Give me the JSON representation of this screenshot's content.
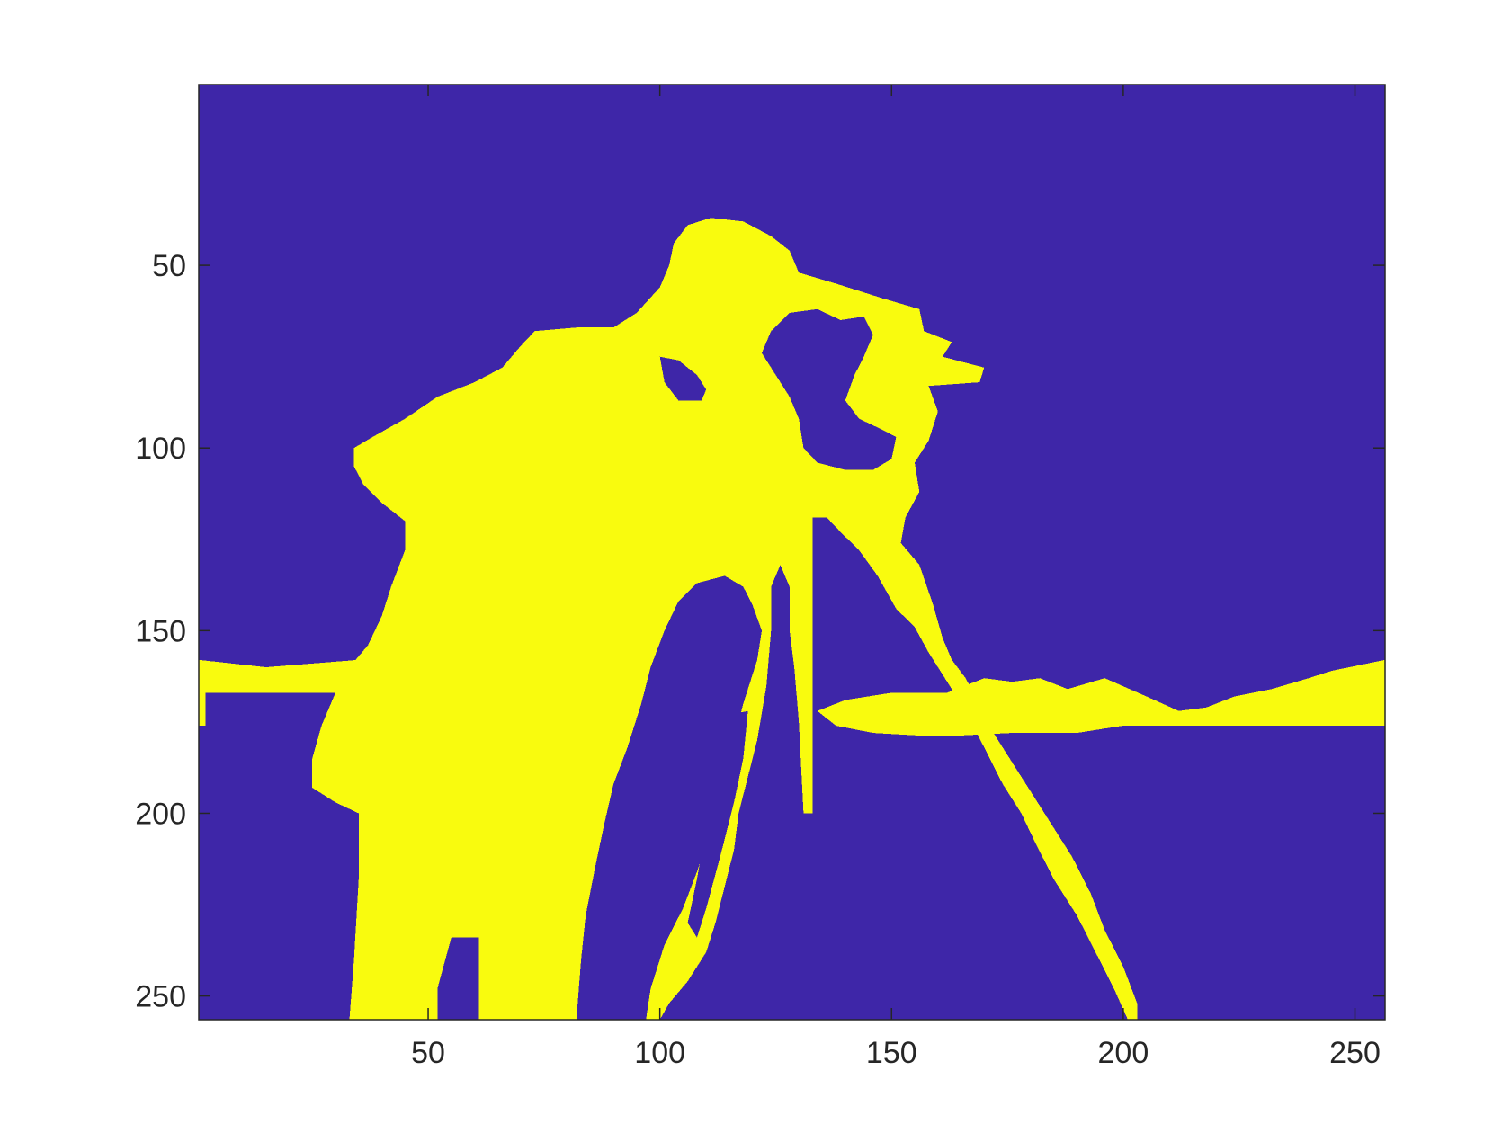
{
  "chart_data": {
    "type": "heatmap",
    "title": "",
    "xlabel": "",
    "ylabel": "",
    "x_range": [
      0.5,
      256.5
    ],
    "y_range": [
      0.5,
      256.5
    ],
    "y_direction": "reversed",
    "x_ticks": [
      50,
      100,
      150,
      200,
      250
    ],
    "y_ticks": [
      50,
      100,
      150,
      200,
      250
    ],
    "x_tick_labels": [
      "50",
      "100",
      "150",
      "200",
      "250"
    ],
    "y_tick_labels": [
      "50",
      "100",
      "150",
      "200",
      "250"
    ],
    "grid": false,
    "value_levels": [
      0,
      1
    ],
    "colors": {
      "0": "#3e26a8",
      "1": "#f9fb0e"
    },
    "regions_value_1": [
      {
        "name": "person",
        "outline": [
          [
            111,
            37
          ],
          [
            118,
            38
          ],
          [
            124,
            42
          ],
          [
            128,
            46
          ],
          [
            130,
            52
          ],
          [
            138,
            55
          ],
          [
            148,
            59
          ],
          [
            156,
            62
          ],
          [
            157,
            68
          ],
          [
            163,
            71
          ],
          [
            161,
            75
          ],
          [
            170,
            78
          ],
          [
            169,
            82
          ],
          [
            158,
            83
          ],
          [
            160,
            90
          ],
          [
            158,
            98
          ],
          [
            155,
            104
          ],
          [
            156,
            112
          ],
          [
            153,
            119
          ],
          [
            152,
            126
          ],
          [
            156,
            132
          ],
          [
            159,
            143
          ],
          [
            161,
            152
          ],
          [
            163,
            158
          ],
          [
            166,
            163
          ],
          [
            168,
            168
          ],
          [
            172,
            178
          ],
          [
            176,
            186
          ],
          [
            181,
            196
          ],
          [
            185,
            204
          ],
          [
            189,
            212
          ],
          [
            193,
            222
          ],
          [
            196,
            232
          ],
          [
            200,
            242
          ],
          [
            203,
            252
          ],
          [
            203,
            256.5
          ],
          [
            201,
            256.5
          ],
          [
            198,
            248
          ],
          [
            194,
            238
          ],
          [
            190,
            228
          ],
          [
            185,
            218
          ],
          [
            181,
            208
          ],
          [
            178,
            200
          ],
          [
            174,
            192
          ],
          [
            170,
            182
          ],
          [
            166,
            172
          ],
          [
            162,
            164
          ],
          [
            158,
            156
          ],
          [
            155,
            149
          ],
          [
            151,
            144
          ],
          [
            147,
            135
          ],
          [
            143,
            128
          ],
          [
            139,
            123
          ],
          [
            136,
            119
          ],
          [
            133,
            119
          ],
          [
            133,
            140
          ],
          [
            133,
            200
          ],
          [
            131,
            200
          ],
          [
            130,
            175
          ],
          [
            129,
            160
          ],
          [
            128,
            150
          ],
          [
            128,
            138
          ],
          [
            126,
            132
          ],
          [
            124,
            138
          ],
          [
            124,
            150
          ],
          [
            123,
            165
          ],
          [
            121,
            180
          ],
          [
            119,
            190
          ],
          [
            117,
            200
          ],
          [
            116,
            210
          ],
          [
            114,
            220
          ],
          [
            112,
            230
          ],
          [
            110,
            238
          ],
          [
            106,
            246
          ],
          [
            102,
            252
          ],
          [
            100,
            256.5
          ],
          [
            97,
            256.5
          ],
          [
            98,
            248
          ],
          [
            101,
            236
          ],
          [
            105,
            226
          ],
          [
            108,
            216
          ],
          [
            111,
            205
          ],
          [
            113,
            192
          ],
          [
            116,
            180
          ],
          [
            118,
            170
          ],
          [
            121,
            158
          ],
          [
            122,
            150
          ],
          [
            120,
            143
          ],
          [
            118,
            138
          ],
          [
            114,
            135
          ],
          [
            108,
            137
          ],
          [
            104,
            142
          ],
          [
            101,
            150
          ],
          [
            98,
            160
          ],
          [
            96,
            170
          ],
          [
            93,
            182
          ],
          [
            90,
            192
          ],
          [
            88,
            203
          ],
          [
            86,
            215
          ],
          [
            84,
            228
          ],
          [
            83,
            240
          ],
          [
            82,
            256.5
          ],
          [
            61,
            256.5
          ],
          [
            61,
            234
          ],
          [
            55,
            234
          ],
          [
            52,
            248
          ],
          [
            52,
            256.5
          ],
          [
            33,
            256.5
          ],
          [
            34,
            240
          ],
          [
            35,
            218
          ],
          [
            35,
            200
          ],
          [
            30,
            197
          ],
          [
            25,
            193
          ],
          [
            25,
            185
          ],
          [
            27,
            176
          ],
          [
            30,
            167
          ],
          [
            33,
            160
          ],
          [
            37,
            154
          ],
          [
            40,
            146
          ],
          [
            42,
            138
          ],
          [
            45,
            128
          ],
          [
            45,
            120
          ],
          [
            40,
            115
          ],
          [
            36,
            110
          ],
          [
            34,
            105
          ],
          [
            34,
            100
          ],
          [
            38,
            97
          ],
          [
            45,
            92
          ],
          [
            52,
            86
          ],
          [
            60,
            82
          ],
          [
            66,
            78
          ],
          [
            70,
            72
          ],
          [
            73,
            68
          ],
          [
            82,
            67
          ],
          [
            90,
            67
          ],
          [
            95,
            63
          ],
          [
            100,
            56
          ],
          [
            102,
            50
          ],
          [
            103,
            44
          ],
          [
            106,
            39
          ]
        ]
      },
      {
        "name": "horizon-band",
        "outline": [
          [
            0.5,
            158
          ],
          [
            15,
            160
          ],
          [
            35,
            158
          ],
          [
            42,
            160
          ],
          [
            42,
            167
          ],
          [
            33,
            167
          ],
          [
            15,
            167
          ],
          [
            2,
            167
          ],
          [
            2,
            176
          ],
          [
            0.5,
            176
          ]
        ]
      },
      {
        "name": "horizon-band-right",
        "outline": [
          [
            140,
            169
          ],
          [
            150,
            167
          ],
          [
            162,
            167
          ],
          [
            170,
            163
          ],
          [
            176,
            164
          ],
          [
            182,
            163
          ],
          [
            188,
            166
          ],
          [
            196,
            163
          ],
          [
            205,
            168
          ],
          [
            212,
            172
          ],
          [
            218,
            171
          ],
          [
            224,
            168
          ],
          [
            232,
            166
          ],
          [
            240,
            163
          ],
          [
            245,
            161
          ],
          [
            256.5,
            158
          ],
          [
            256.5,
            176
          ],
          [
            220,
            176
          ],
          [
            200,
            176
          ],
          [
            190,
            178
          ],
          [
            176,
            178
          ],
          [
            160,
            179
          ],
          [
            146,
            178
          ],
          [
            138,
            176
          ],
          [
            134,
            172
          ]
        ]
      }
    ],
    "regions_value_0": [
      {
        "name": "face-gap",
        "outline": [
          [
            124,
            68
          ],
          [
            128,
            63
          ],
          [
            134,
            62
          ],
          [
            139,
            65
          ],
          [
            144,
            64
          ],
          [
            146,
            69
          ],
          [
            144,
            75
          ],
          [
            142,
            80
          ],
          [
            140,
            87
          ],
          [
            143,
            92
          ],
          [
            148,
            95
          ],
          [
            151,
            97
          ],
          [
            150,
            103
          ],
          [
            146,
            106
          ],
          [
            140,
            106
          ],
          [
            134,
            104
          ],
          [
            131,
            100
          ],
          [
            130,
            92
          ],
          [
            128,
            86
          ],
          [
            125,
            80
          ],
          [
            122,
            74
          ]
        ]
      },
      {
        "name": "arm-gap",
        "outline": [
          [
            100,
            75
          ],
          [
            104,
            76
          ],
          [
            108,
            80
          ],
          [
            110,
            84
          ],
          [
            109,
            87
          ],
          [
            104,
            87
          ],
          [
            101,
            82
          ]
        ]
      },
      {
        "name": "tripod-gap-1",
        "outline": [
          [
            104,
            143
          ],
          [
            110,
            142
          ],
          [
            115,
            140
          ],
          [
            118,
            142
          ],
          [
            116,
            152
          ],
          [
            114,
            162
          ],
          [
            110,
            168
          ],
          [
            104,
            168
          ],
          [
            103,
            160
          ]
        ]
      },
      {
        "name": "tripod-gap-2",
        "outline": [
          [
            124,
            150
          ],
          [
            128,
            148
          ],
          [
            128,
            168
          ],
          [
            124,
            168
          ]
        ]
      },
      {
        "name": "tripod-gap-3",
        "outline": [
          [
            115,
            173
          ],
          [
            119,
            172
          ],
          [
            118,
            185
          ],
          [
            116,
            197
          ],
          [
            113,
            212
          ],
          [
            110,
            226
          ],
          [
            108,
            234
          ],
          [
            106,
            230
          ],
          [
            108,
            218
          ],
          [
            110,
            204
          ],
          [
            112,
            190
          ]
        ]
      }
    ]
  }
}
